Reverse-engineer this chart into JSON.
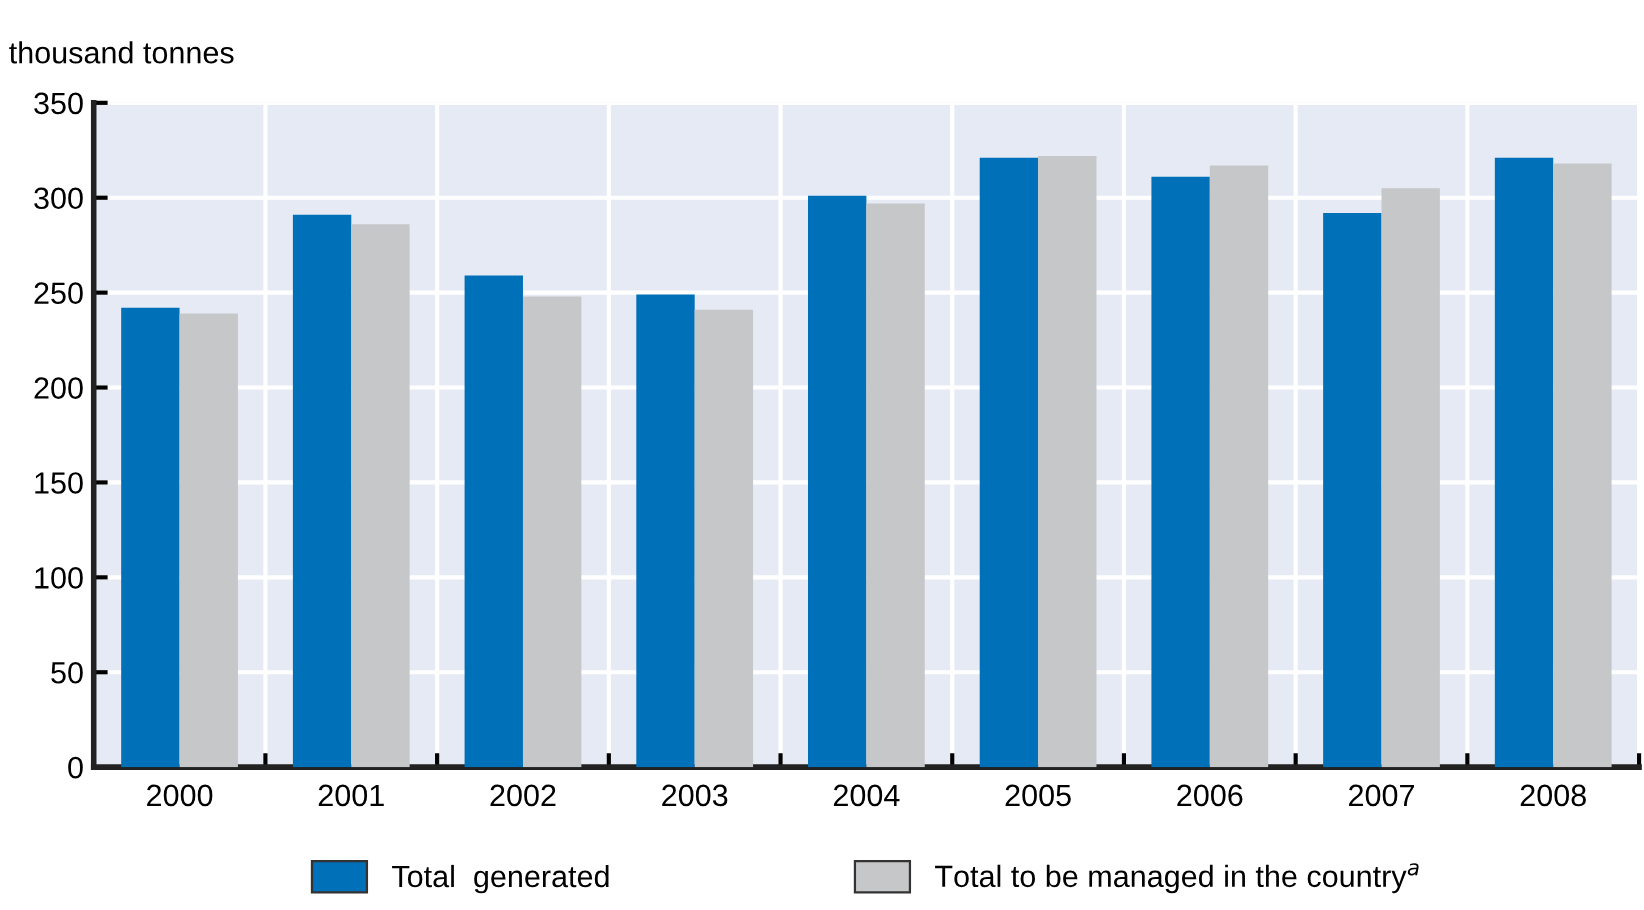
{
  "chart_data": {
    "type": "bar",
    "ylabel": "thousand tonnes",
    "categories": [
      "2000",
      "2001",
      "2002",
      "2003",
      "2004",
      "2005",
      "2006",
      "2007",
      "2008"
    ],
    "series": [
      {
        "name": "Total  generated",
        "color": "#0070b8",
        "values": [
          242,
          291,
          259,
          249,
          301,
          321,
          311,
          292,
          321
        ]
      },
      {
        "name": "Total to be managed in the country$^{a}$",
        "color": "#c6c7c9",
        "values": [
          239,
          286,
          248,
          241,
          297,
          322,
          317,
          305,
          318
        ]
      }
    ],
    "ylim": [
      0,
      350
    ],
    "yticks": [
      0,
      50,
      100,
      150,
      200,
      250,
      300,
      350
    ],
    "grid": true,
    "legend": "bottom"
  }
}
